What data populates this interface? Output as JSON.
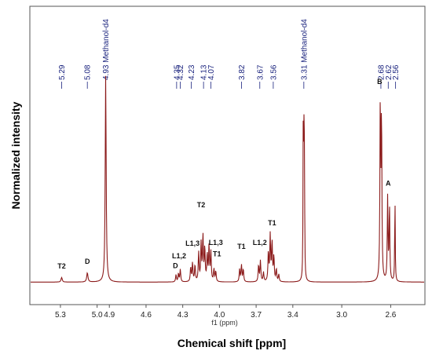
{
  "chart_data": {
    "type": "line",
    "title": "",
    "xlabel": "Chemical shift [ppm]",
    "xlabel_secondary": "f1 (ppm)",
    "ylabel": "Normalized intensity",
    "xlim": [
      5.55,
      2.32
    ],
    "x_reversed": true,
    "ylim": [
      0,
      1.0
    ],
    "grid": false,
    "legend": "none",
    "colors": {
      "trace": "#8b1a1a",
      "peak_label": "#1a237e",
      "frame": "#555555"
    },
    "x_ticks": [
      {
        "value": 5.3,
        "label": "5.3"
      },
      {
        "value": 5.0,
        "label": "5.0"
      },
      {
        "value": 4.9,
        "label": "4.9"
      },
      {
        "value": 4.6,
        "label": "4.6"
      },
      {
        "value": 4.3,
        "label": "4.3"
      },
      {
        "value": 4.0,
        "label": "4.0"
      },
      {
        "value": 3.7,
        "label": "3.7"
      },
      {
        "value": 3.4,
        "label": "3.4"
      },
      {
        "value": 3.0,
        "label": "3.0"
      },
      {
        "value": 2.6,
        "label": "2.6"
      }
    ],
    "peak_labels": [
      {
        "text": "5.29",
        "ppm": 5.29
      },
      {
        "text": "5.08",
        "ppm": 5.08
      },
      {
        "text": "4.93 Methanol-d4",
        "ppm": 4.93
      },
      {
        "text": "4.35",
        "ppm": 4.35
      },
      {
        "text": "4.32",
        "ppm": 4.32
      },
      {
        "text": "4.23",
        "ppm": 4.23
      },
      {
        "text": "4.13",
        "ppm": 4.13
      },
      {
        "text": "4.07",
        "ppm": 4.07
      },
      {
        "text": "3.82",
        "ppm": 3.82
      },
      {
        "text": "3.67",
        "ppm": 3.67
      },
      {
        "text": "3.56",
        "ppm": 3.56
      },
      {
        "text": "3.31 Methanol-d4",
        "ppm": 3.31
      },
      {
        "text": "2.68",
        "ppm": 2.68
      },
      {
        "text": "2.62",
        "ppm": 2.62
      },
      {
        "text": "2.56",
        "ppm": 2.56
      }
    ],
    "signal_labels": [
      {
        "text": "T2",
        "ppm": 5.29,
        "y": 0.075
      },
      {
        "text": "D",
        "ppm": 5.08,
        "y": 0.098
      },
      {
        "text": "D",
        "ppm": 4.36,
        "y": 0.078
      },
      {
        "text": "L1,2",
        "ppm": 4.33,
        "y": 0.125
      },
      {
        "text": "L1,3",
        "ppm": 4.22,
        "y": 0.185
      },
      {
        "text": "T2",
        "ppm": 4.15,
        "y": 0.372
      },
      {
        "text": "L1,3",
        "ppm": 4.03,
        "y": 0.19
      },
      {
        "text": "T1",
        "ppm": 4.02,
        "y": 0.135
      },
      {
        "text": "T1",
        "ppm": 3.82,
        "y": 0.17
      },
      {
        "text": "L1,2",
        "ppm": 3.67,
        "y": 0.19
      },
      {
        "text": "T1",
        "ppm": 3.57,
        "y": 0.285
      },
      {
        "text": "B",
        "ppm": 2.69,
        "y": 0.965
      },
      {
        "text": "A",
        "ppm": 2.62,
        "y": 0.475
      }
    ],
    "peaks": [
      {
        "ppm": 5.29,
        "height": 0.022,
        "width": 0.006
      },
      {
        "ppm": 5.08,
        "height": 0.045,
        "width": 0.006
      },
      {
        "ppm": 4.93,
        "height": 1.0,
        "width": 0.0045
      },
      {
        "ppm": 4.355,
        "height": 0.035,
        "width": 0.004
      },
      {
        "ppm": 4.335,
        "height": 0.04,
        "width": 0.004
      },
      {
        "ppm": 4.32,
        "height": 0.06,
        "width": 0.004
      },
      {
        "ppm": 4.235,
        "height": 0.07,
        "width": 0.004
      },
      {
        "ppm": 4.22,
        "height": 0.09,
        "width": 0.004
      },
      {
        "ppm": 4.2,
        "height": 0.08,
        "width": 0.004
      },
      {
        "ppm": 4.17,
        "height": 0.14,
        "width": 0.004
      },
      {
        "ppm": 4.15,
        "height": 0.18,
        "width": 0.004
      },
      {
        "ppm": 4.135,
        "height": 0.22,
        "width": 0.004
      },
      {
        "ppm": 4.12,
        "height": 0.16,
        "width": 0.004
      },
      {
        "ppm": 4.1,
        "height": 0.13,
        "width": 0.004
      },
      {
        "ppm": 4.085,
        "height": 0.17,
        "width": 0.004
      },
      {
        "ppm": 4.07,
        "height": 0.14,
        "width": 0.004
      },
      {
        "ppm": 4.045,
        "height": 0.06,
        "width": 0.004
      },
      {
        "ppm": 4.03,
        "height": 0.05,
        "width": 0.004
      },
      {
        "ppm": 3.835,
        "height": 0.06,
        "width": 0.004
      },
      {
        "ppm": 3.82,
        "height": 0.08,
        "width": 0.004
      },
      {
        "ppm": 3.805,
        "height": 0.06,
        "width": 0.004
      },
      {
        "ppm": 3.68,
        "height": 0.08,
        "width": 0.004
      },
      {
        "ppm": 3.665,
        "height": 0.1,
        "width": 0.004
      },
      {
        "ppm": 3.64,
        "height": 0.045,
        "width": 0.004
      },
      {
        "ppm": 3.6,
        "height": 0.14,
        "width": 0.004
      },
      {
        "ppm": 3.585,
        "height": 0.22,
        "width": 0.004
      },
      {
        "ppm": 3.57,
        "height": 0.19,
        "width": 0.004
      },
      {
        "ppm": 3.555,
        "height": 0.12,
        "width": 0.004
      },
      {
        "ppm": 3.535,
        "height": 0.06,
        "width": 0.004
      },
      {
        "ppm": 3.515,
        "height": 0.035,
        "width": 0.004
      },
      {
        "ppm": 3.315,
        "height": 0.66,
        "width": 0.0022
      },
      {
        "ppm": 3.31,
        "height": 0.74,
        "width": 0.0022
      },
      {
        "ppm": 3.305,
        "height": 0.58,
        "width": 0.0022
      },
      {
        "ppm": 2.685,
        "height": 0.86,
        "width": 0.0035
      },
      {
        "ppm": 2.675,
        "height": 0.8,
        "width": 0.0035
      },
      {
        "ppm": 2.625,
        "height": 0.4,
        "width": 0.0035
      },
      {
        "ppm": 2.61,
        "height": 0.37,
        "width": 0.0035
      },
      {
        "ppm": 2.565,
        "height": 0.42,
        "width": 0.0025
      }
    ],
    "baseline": 0.01
  }
}
